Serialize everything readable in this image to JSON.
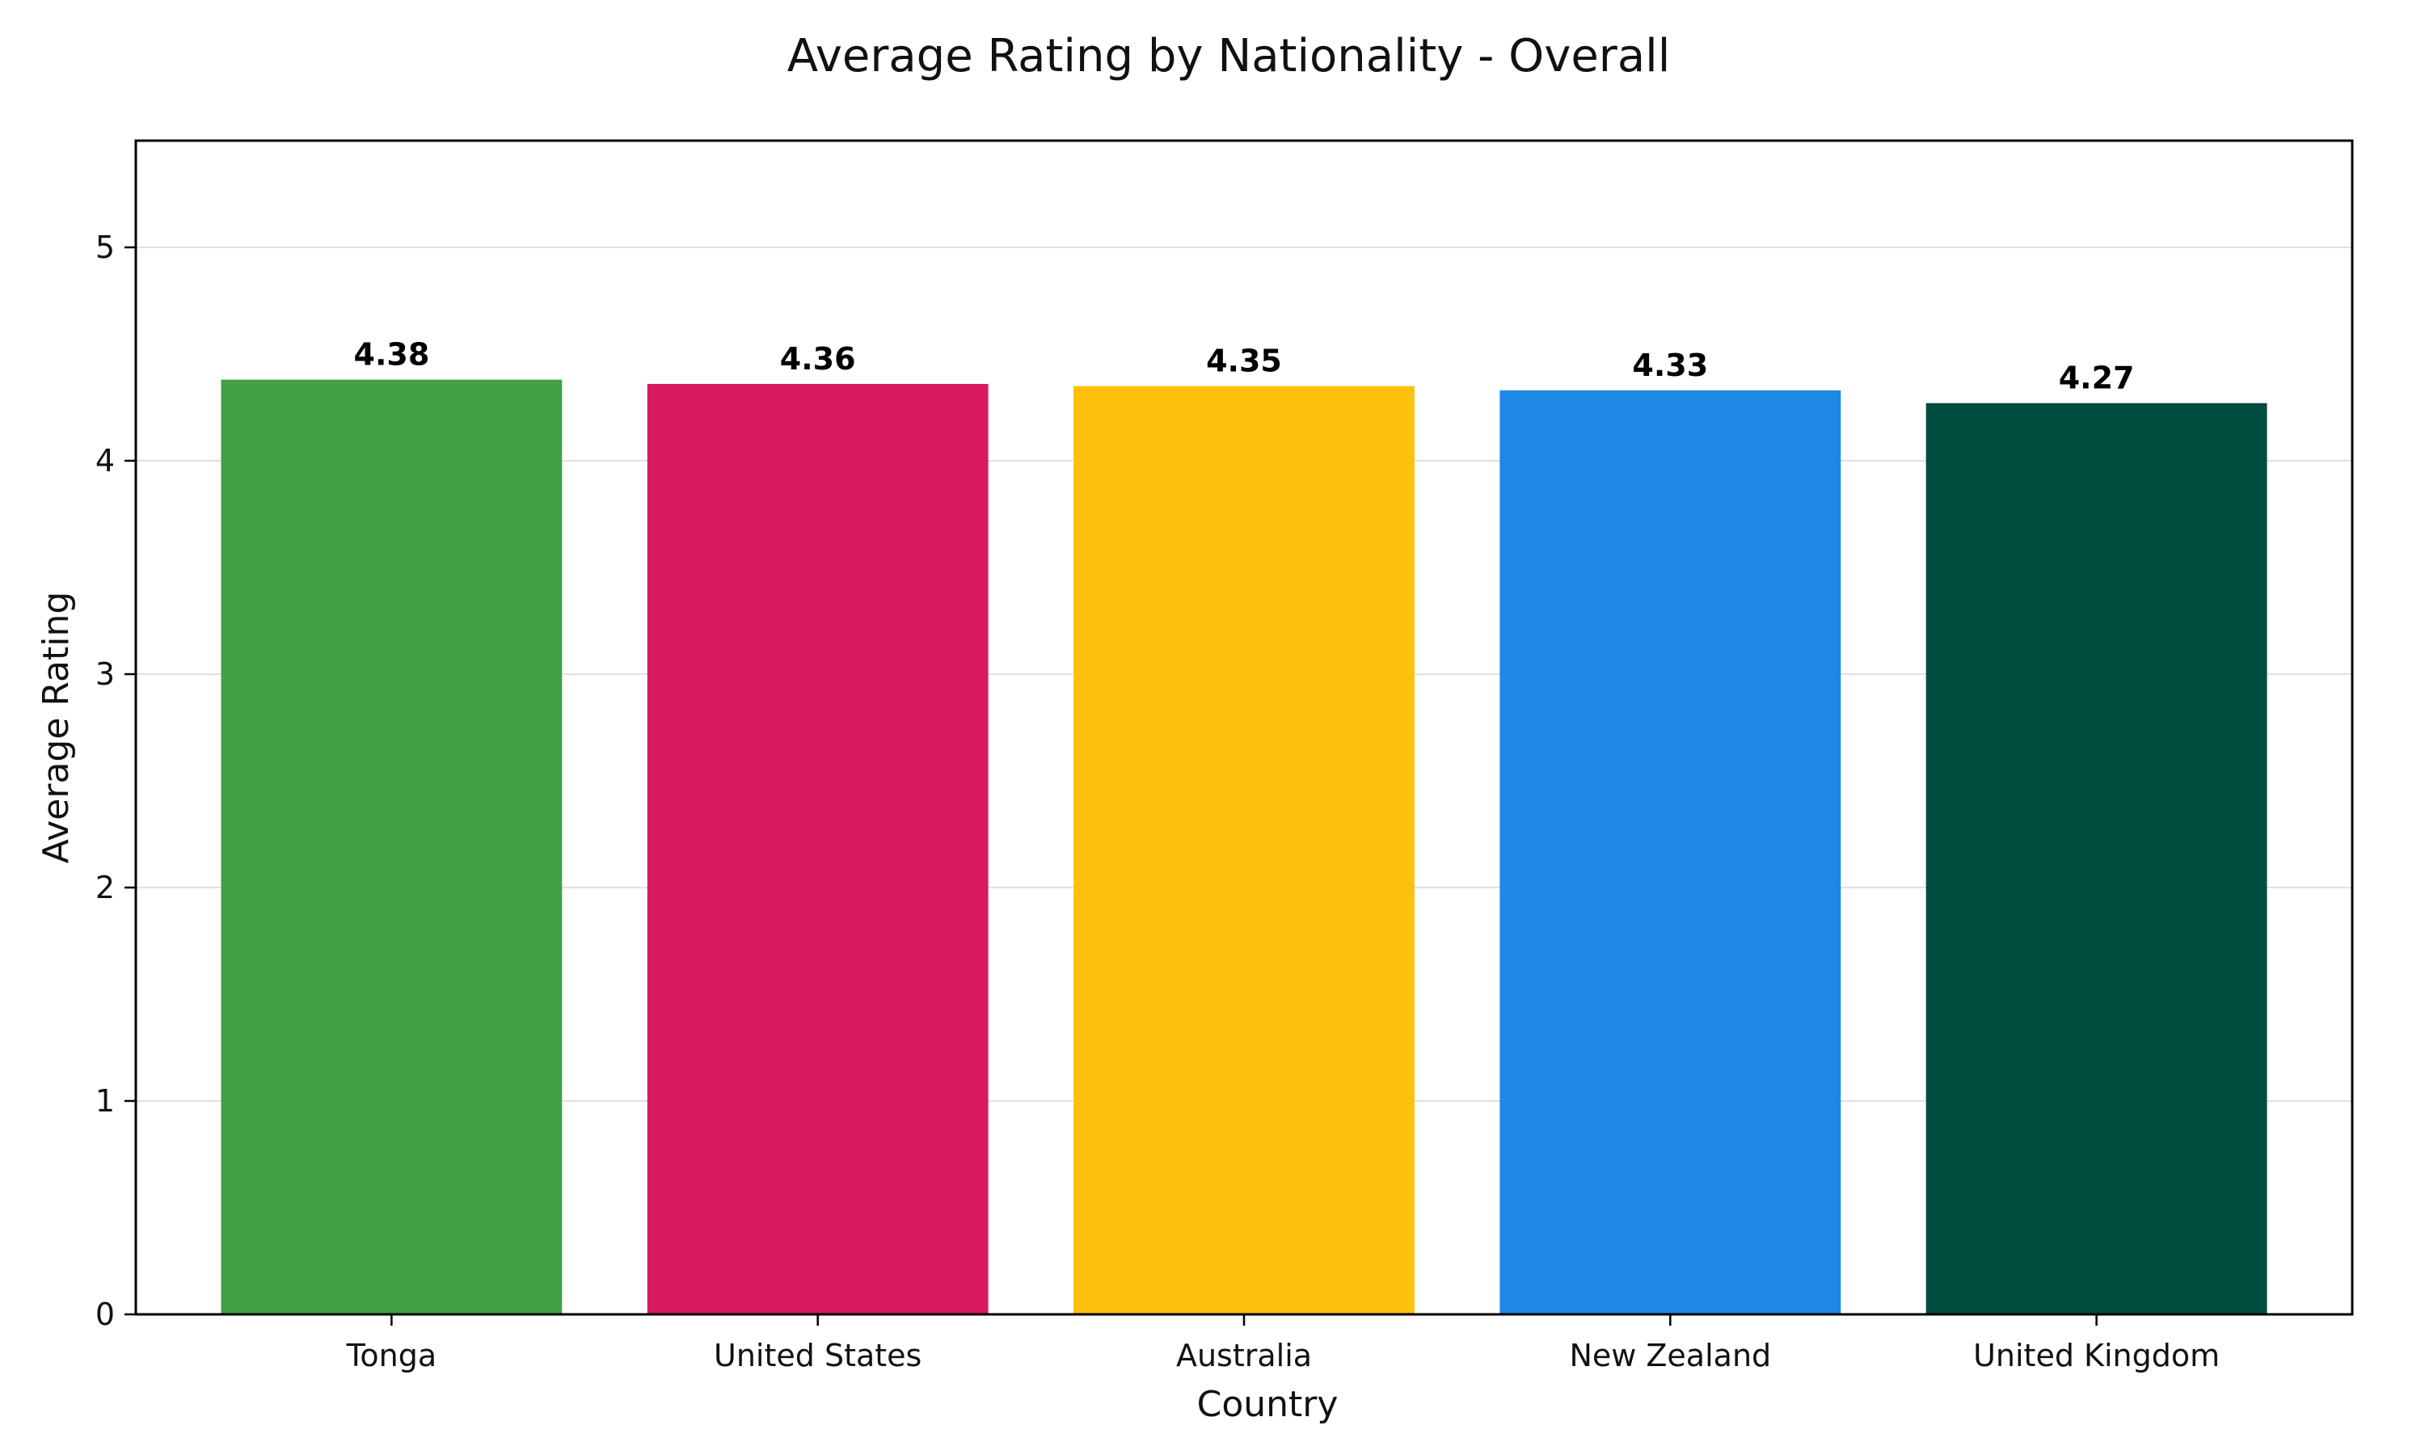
{
  "chart_data": {
    "type": "bar",
    "title": "Average Rating by Nationality - Overall",
    "xlabel": "Country",
    "ylabel": "Average Rating",
    "categories": [
      "Tonga",
      "United States",
      "Australia",
      "New Zealand",
      "United Kingdom"
    ],
    "values": [
      4.38,
      4.36,
      4.35,
      4.33,
      4.27
    ],
    "value_labels": [
      "4.38",
      "4.36",
      "4.35",
      "4.33",
      "4.27"
    ],
    "colors": [
      "#43a047",
      "#d81b60",
      "#fdc00c",
      "#1e88e5",
      "#004d40"
    ],
    "ylim": [
      0,
      5.5
    ],
    "yticks": [
      0,
      1,
      2,
      3,
      4,
      5
    ],
    "grid": "y",
    "legend": "none"
  }
}
